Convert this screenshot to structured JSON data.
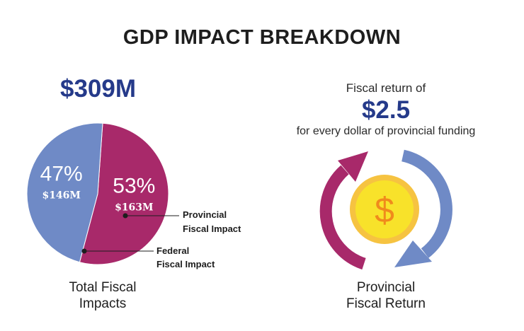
{
  "title": "GDP IMPACT BREAKDOWN",
  "total_fiscal": {
    "total_label": "$309M",
    "caption_line1": "Total Fiscal",
    "caption_line2": "Impacts"
  },
  "fiscal_return": {
    "prefix": "Fiscal return of",
    "value": "$2.5",
    "suffix": "for every dollar of provincial funding",
    "caption_line1": "Provincial",
    "caption_line2": "Fiscal Return",
    "coin_symbol": "$"
  },
  "colors": {
    "provincial": "#a8296a",
    "federal": "#6f8ac6",
    "heading_blue": "#253a8a",
    "coin_outer": "#f6c341",
    "coin_inner": "#f8e22a",
    "coin_symbol": "#f08a1c"
  },
  "chart_data": {
    "type": "pie",
    "slices": [
      {
        "label_line1": "Provincial",
        "label_line2": "Fiscal Impact",
        "percent": 53,
        "percent_label": "53%",
        "amount": 163,
        "amount_label": "$163M",
        "color": "#a8296a"
      },
      {
        "label_line1": "Federal",
        "label_line2": "Fiscal Impact",
        "percent": 47,
        "percent_label": "47%",
        "amount": 146,
        "amount_label": "$146M",
        "color": "#6f8ac6"
      }
    ],
    "total": 309,
    "legend": "callouts"
  }
}
